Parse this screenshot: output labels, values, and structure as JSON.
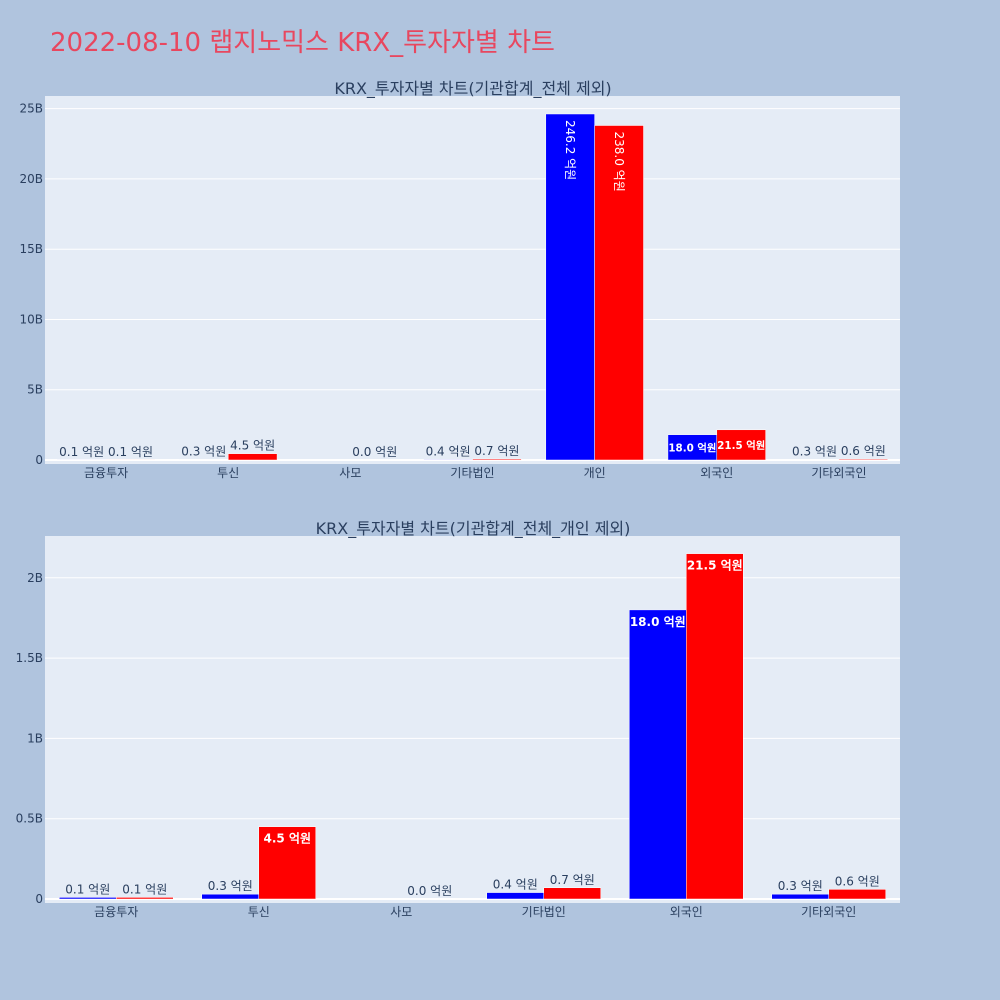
{
  "page": {
    "title": "2022-08-10 랩지노믹스 KRX_투자자별 차트"
  },
  "colors": {
    "series_a": "#0000ff",
    "series_b": "#ff0000",
    "plot_bg": "#e5ecf6",
    "page_bg": "#b0c4de"
  },
  "chart_data": [
    {
      "type": "bar",
      "title": "KRX_투자자별 차트(기관합계_전체 제외)",
      "categories": [
        "금융투자",
        "투신",
        "사모",
        "기타법인",
        "개인",
        "외국인",
        "기타외국인"
      ],
      "series": [
        {
          "values": [
            10000000,
            30000000,
            0,
            40000000,
            24620000000,
            1800000000,
            30000000
          ],
          "labels": [
            "0.1 억원",
            "0.3 억원",
            "",
            "0.4 억원",
            "246.2 억원",
            "18.0 억원",
            "0.3 억원"
          ]
        },
        {
          "values": [
            10000000,
            450000000,
            0,
            70000000,
            23800000000,
            2150000000,
            60000000
          ],
          "labels": [
            "0.1 억원",
            "4.5 억원",
            "0.0 억원",
            "0.7 억원",
            "238.0 억원",
            "21.5 억원",
            "0.6 억원"
          ]
        }
      ],
      "yticks": [
        "0",
        "5B",
        "10B",
        "15B",
        "20B",
        "25B"
      ],
      "ytick_values": [
        0,
        5000000000,
        10000000000,
        15000000000,
        20000000000,
        25000000000
      ],
      "ylim": [
        0,
        25900000000
      ],
      "grid": true
    },
    {
      "type": "bar",
      "title": "KRX_투자자별 차트(기관합계_전체_개인 제외)",
      "categories": [
        "금융투자",
        "투신",
        "사모",
        "기타법인",
        "외국인",
        "기타외국인"
      ],
      "series": [
        {
          "values": [
            10000000,
            30000000,
            0,
            40000000,
            1800000000,
            30000000
          ],
          "labels": [
            "0.1 억원",
            "0.3 억원",
            "",
            "0.4 억원",
            "18.0 억원",
            "0.3 억원"
          ]
        },
        {
          "values": [
            10000000,
            450000000,
            0,
            70000000,
            2150000000,
            60000000
          ],
          "labels": [
            "0.1 억원",
            "4.5 억원",
            "0.0 억원",
            "0.7 억원",
            "21.5 억원",
            "0.6 억원"
          ]
        }
      ],
      "yticks": [
        "0",
        "0.5B",
        "1B",
        "1.5B",
        "2B"
      ],
      "ytick_values": [
        0,
        500000000,
        1000000000,
        1500000000,
        2000000000
      ],
      "ylim": [
        0,
        2260000000
      ],
      "grid": true
    }
  ]
}
